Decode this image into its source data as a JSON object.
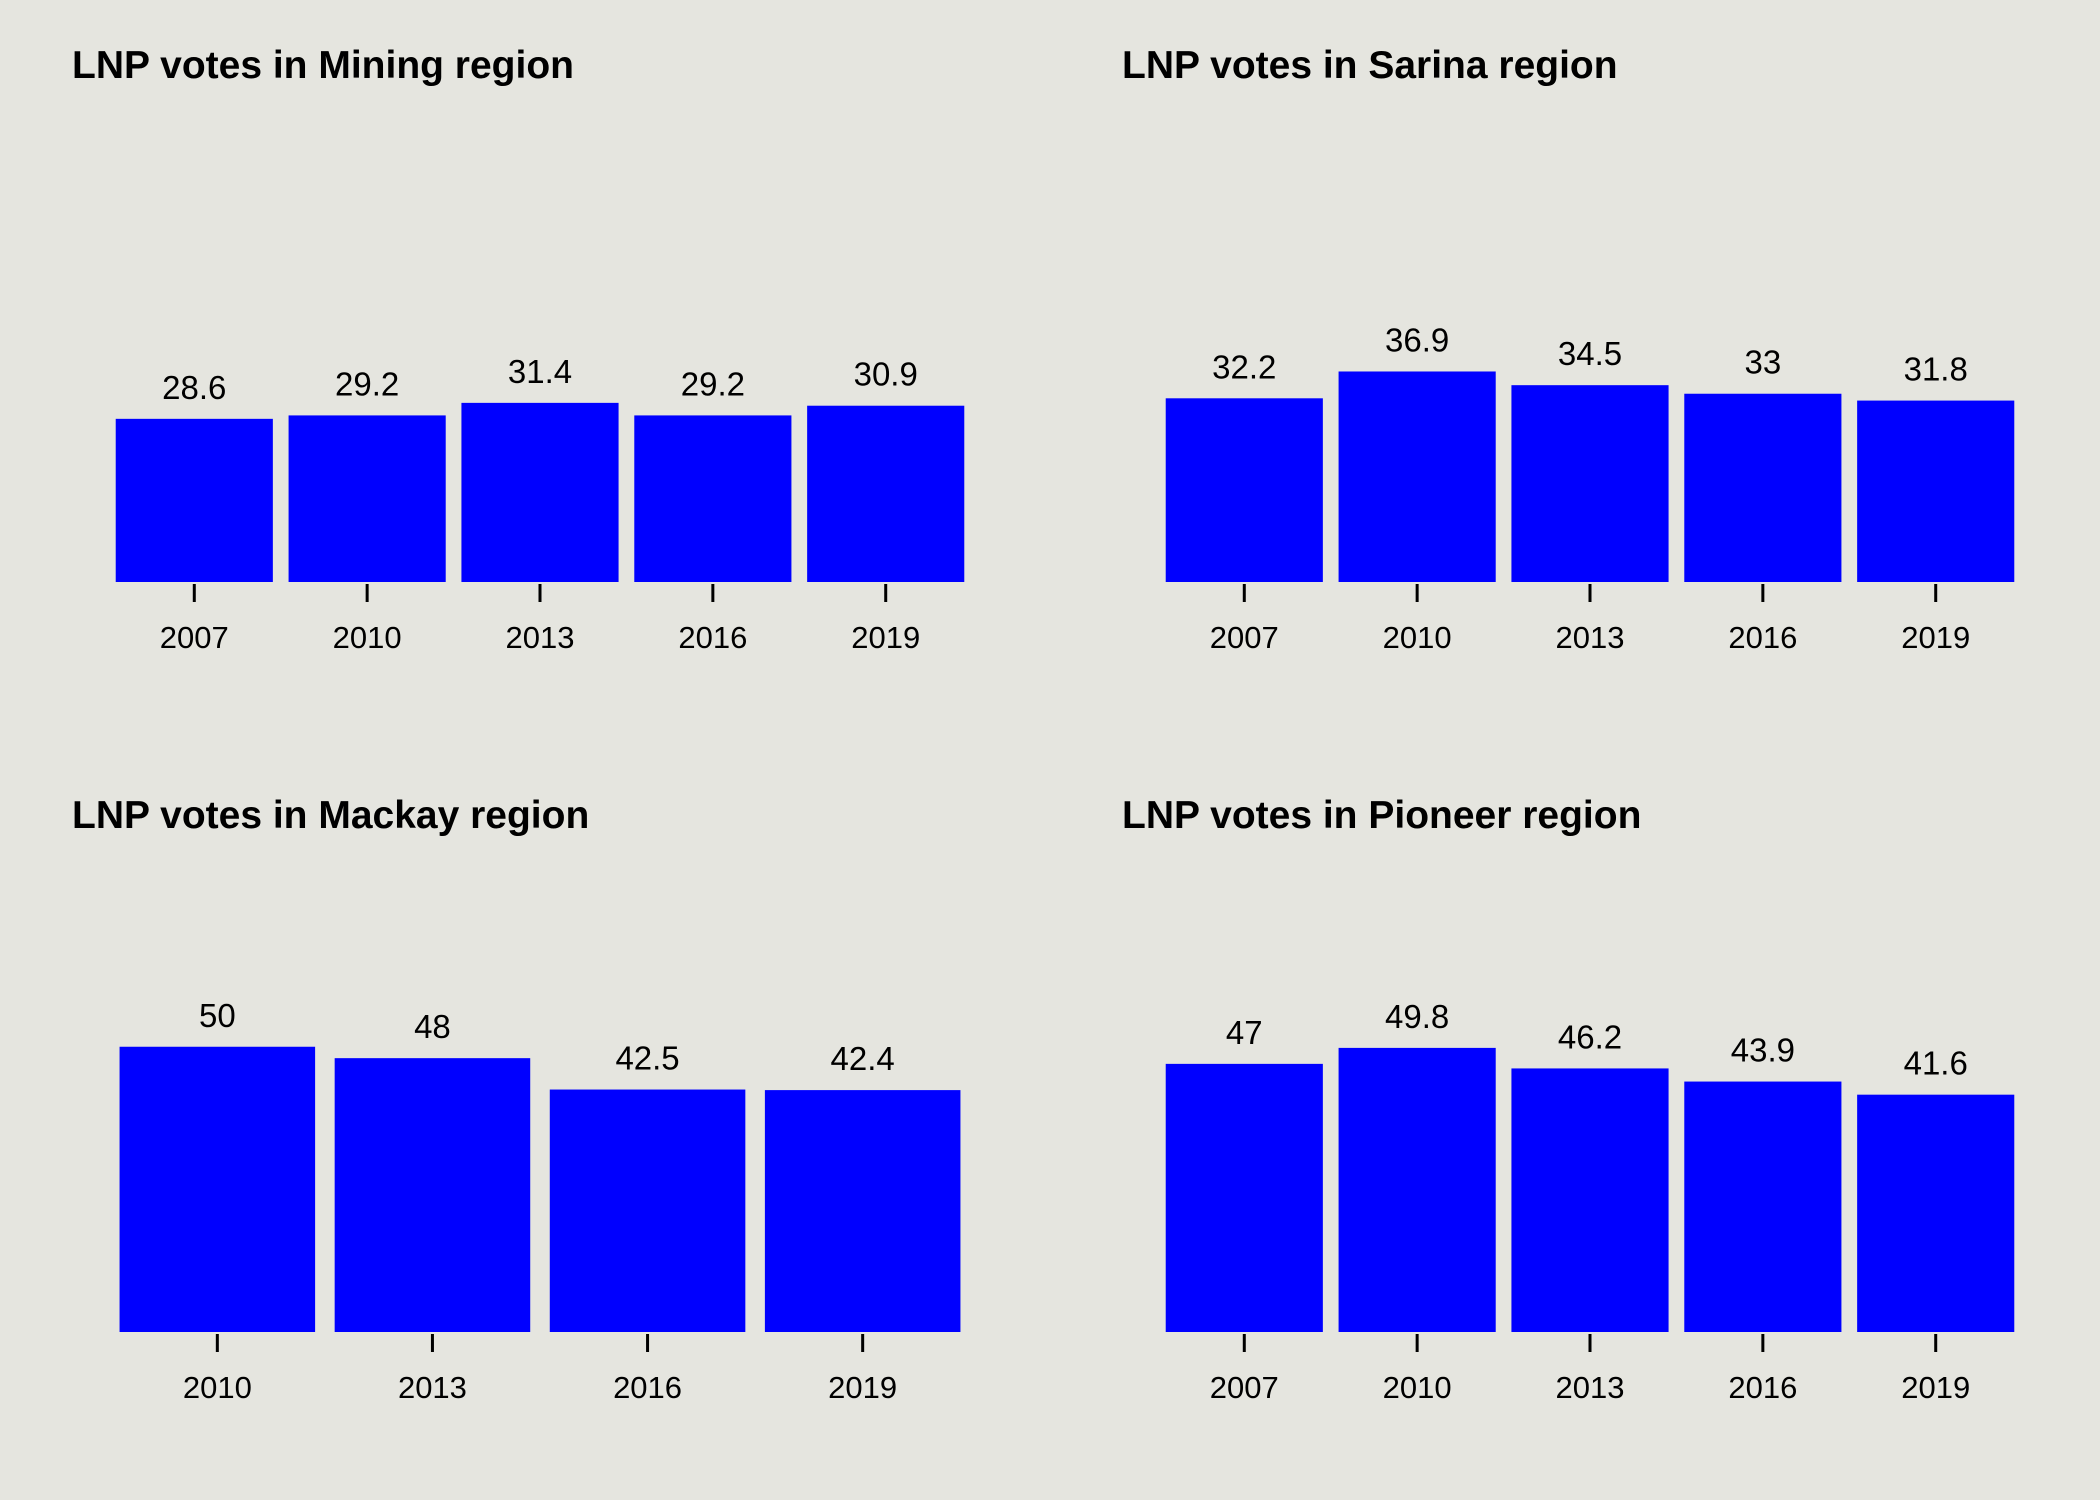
{
  "colors": {
    "background": "#e5e5df",
    "bar": "#0000ff",
    "text": "#000000"
  },
  "chart_data": [
    {
      "type": "bar",
      "title": "LNP votes in Mining region",
      "categories": [
        "2007",
        "2010",
        "2013",
        "2016",
        "2019"
      ],
      "values": [
        28.6,
        29.2,
        31.4,
        29.2,
        30.9
      ],
      "value_labels": [
        "28.6",
        "29.2",
        "31.4",
        "29.2",
        "30.9"
      ],
      "xlabel": "",
      "ylabel": "",
      "ylim": [
        0,
        60
      ],
      "grid": false,
      "y_axis_shown": false
    },
    {
      "type": "bar",
      "title": "LNP votes in Sarina region",
      "categories": [
        "2007",
        "2010",
        "2013",
        "2016",
        "2019"
      ],
      "values": [
        32.2,
        36.9,
        34.5,
        33,
        31.8
      ],
      "value_labels": [
        "32.2",
        "36.9",
        "34.5",
        "33",
        "31.8"
      ],
      "xlabel": "",
      "ylabel": "",
      "ylim": [
        0,
        60
      ],
      "grid": false,
      "y_axis_shown": false
    },
    {
      "type": "bar",
      "title": "LNP votes in Mackay region",
      "categories": [
        "2010",
        "2013",
        "2016",
        "2019"
      ],
      "values": [
        50,
        48,
        42.5,
        42.4
      ],
      "value_labels": [
        "50",
        "48",
        "42.5",
        "42.4"
      ],
      "xlabel": "",
      "ylabel": "",
      "ylim": [
        0,
        60
      ],
      "grid": false,
      "y_axis_shown": false
    },
    {
      "type": "bar",
      "title": "LNP votes in Pioneer region",
      "categories": [
        "2007",
        "2010",
        "2013",
        "2016",
        "2019"
      ],
      "values": [
        47,
        49.8,
        46.2,
        43.9,
        41.6
      ],
      "value_labels": [
        "47",
        "49.8",
        "46.2",
        "43.9",
        "41.6"
      ],
      "xlabel": "",
      "ylabel": "",
      "ylim": [
        0,
        60
      ],
      "grid": false,
      "y_axis_shown": false
    }
  ]
}
